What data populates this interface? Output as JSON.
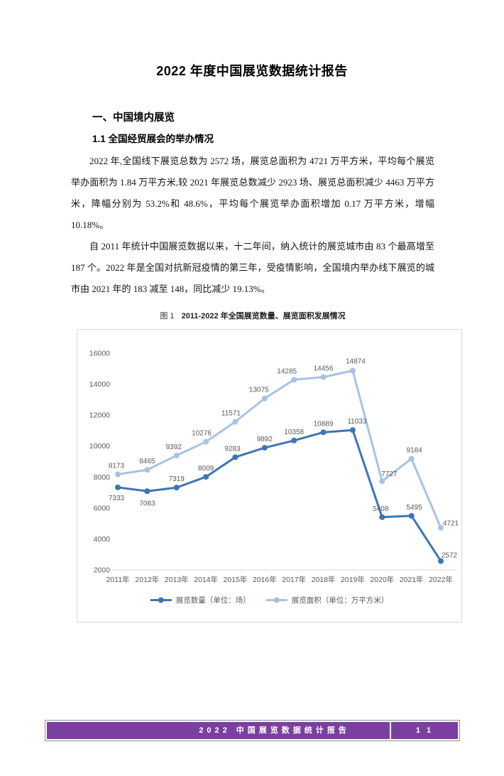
{
  "page": {
    "title": "2022 年度中国展览数据统计报告",
    "section_heading": "一、中国境内展览",
    "subsection_heading": "1.1 全国经贸展会的举办情况",
    "paragraphs": [
      "2022 年,全国线下展览总数为 2572 场，展览总面积为 4721 万平方米，平均每个展览举办面积为 1.84 万平方米,较 2021 年展览总数减少 2923 场、展览总面积减少 4463 万平方米，降幅分别为 53.2%和 48.6%，平均每个展览举办面积增加 0.17 万平方米，增幅 10.18%。",
      "自 2011 年统计中国展览数据以来，十二年间，纳入统计的展览城市由 83 个最高增至 187 个。2022 年是全国对抗新冠疫情的第三年，受疫情影响，全国境内举办线下展览的城市由 2021 年的 183 减至 148，同比减少 19.13%。"
    ],
    "figure_caption_prefix": "图 1",
    "figure_caption_text": "2011-2022 年全国展览数量、展览面积发展情况"
  },
  "chart_data": {
    "type": "line",
    "title": "图 1 2011-2022 年全国展览数量、展览面积发展情况",
    "categories": [
      "2011年",
      "2012年",
      "2013年",
      "2014年",
      "2015年",
      "2016年",
      "2017年",
      "2018年",
      "2019年",
      "2020年",
      "2021年",
      "2022年"
    ],
    "series": [
      {
        "name": "展览数量（单位：场）",
        "color": "#3C76B4",
        "values": [
          7333,
          7083,
          7319,
          8009,
          9283,
          9892,
          10358,
          10889,
          11033,
          5408,
          5495,
          2572
        ]
      },
      {
        "name": "展览面积（单位：万平方米）",
        "color": "#A6C3E4",
        "values": [
          8173,
          8465,
          9392,
          10276,
          11571,
          13075,
          14285,
          14456,
          14874,
          7727,
          9184,
          4721
        ]
      }
    ],
    "xlabel": "",
    "ylabel": "",
    "ylim": [
      2000,
      16000
    ],
    "ytick_step": 2000,
    "yticks": [
      2000,
      4000,
      6000,
      8000,
      10000,
      12000,
      14000,
      16000
    ],
    "grid": false,
    "legend_position": "bottom",
    "axis_text_color": "#595959",
    "axis_line_color": "#D9D9D9",
    "data_labels": true
  },
  "footer": {
    "text": "2022 中国展览数据统计报告",
    "page_number": "1 1",
    "bar_color": "#7B3FA2"
  }
}
